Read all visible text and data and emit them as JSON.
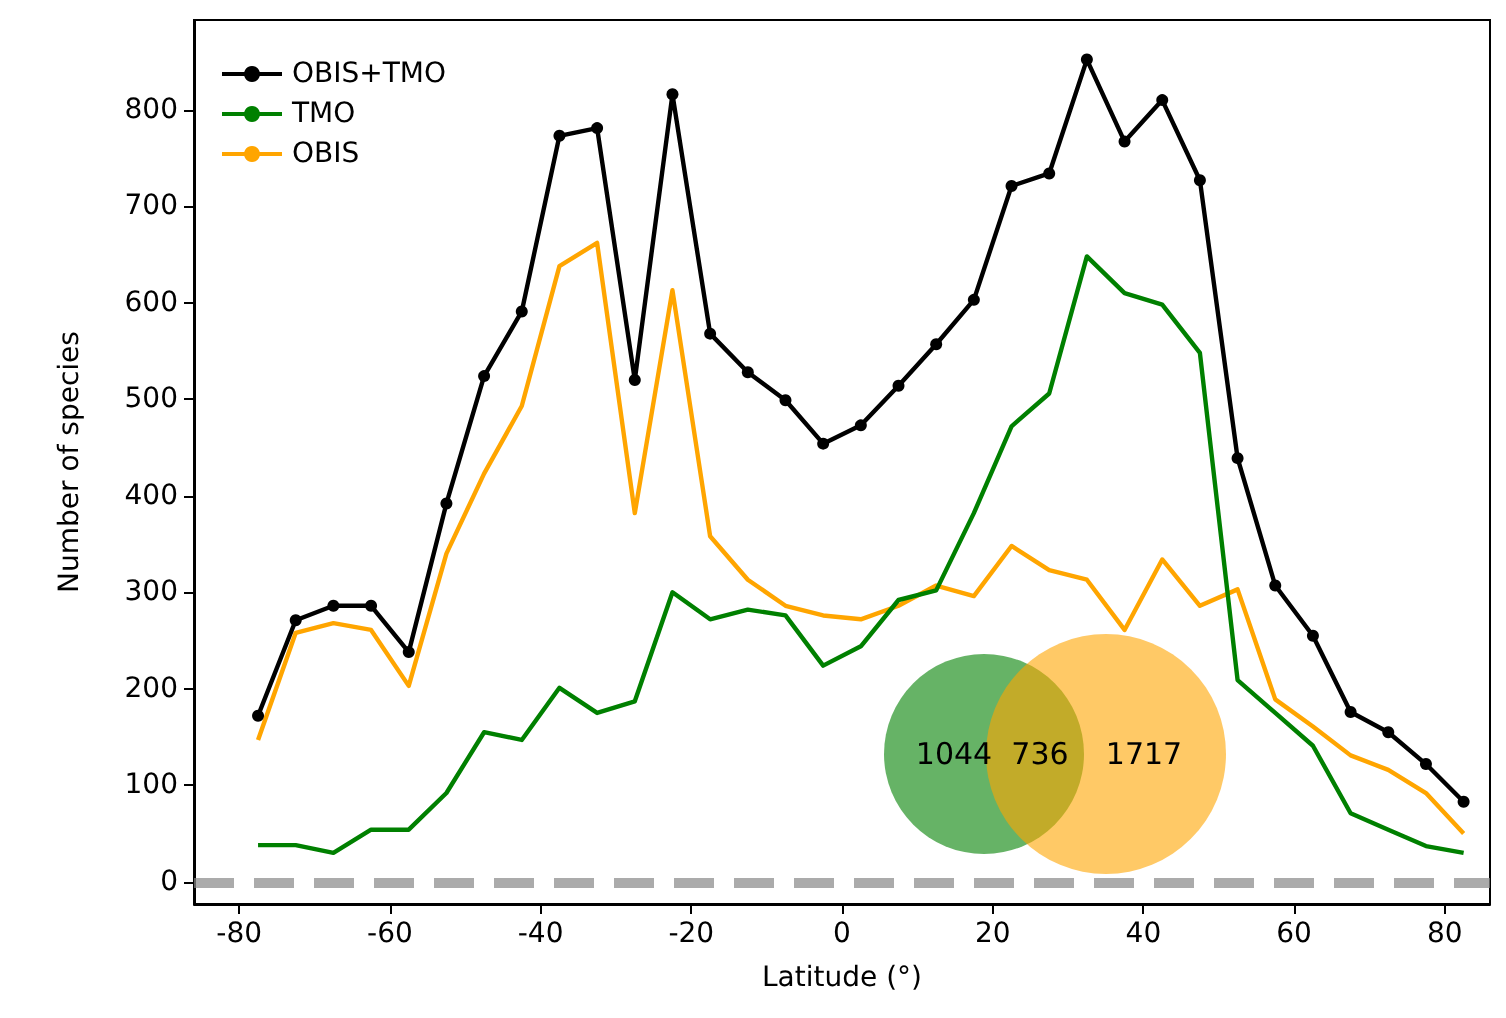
{
  "chart_data": {
    "type": "line",
    "xlabel": "Latitude (°)",
    "ylabel": "Number of species",
    "x": [
      -77.5,
      -72.5,
      -67.5,
      -62.5,
      -57.5,
      -52.5,
      -47.5,
      -42.5,
      -37.5,
      -32.5,
      -27.5,
      -22.5,
      -17.5,
      -12.5,
      -7.5,
      -2.5,
      2.5,
      7.5,
      12.5,
      17.5,
      22.5,
      27.5,
      32.5,
      37.5,
      42.5,
      47.5,
      52.5,
      57.5,
      62.5,
      67.5,
      72.5,
      77.5,
      82.5
    ],
    "series": [
      {
        "name": "OBIS+TMO",
        "color": "#000000",
        "marker": "circle",
        "values": [
          172,
          271,
          286,
          286,
          238,
          392,
          524,
          591,
          773,
          781,
          520,
          816,
          568,
          528,
          499,
          454,
          473,
          514,
          557,
          603,
          721,
          734,
          852,
          767,
          810,
          727,
          439,
          307,
          255,
          176,
          155,
          122,
          83
        ]
      },
      {
        "name": "TMO",
        "color": "#008000",
        "marker": "none",
        "values": [
          38,
          38,
          30,
          54,
          54,
          92,
          155,
          147,
          201,
          175,
          187,
          300,
          272,
          282,
          276,
          224,
          244,
          292,
          302,
          382,
          472,
          506,
          648,
          610,
          598,
          548,
          209,
          175,
          141,
          71,
          54,
          37,
          30
        ]
      },
      {
        "name": "OBIS",
        "color": "#ffa500",
        "marker": "none",
        "values": [
          147,
          258,
          268,
          261,
          203,
          340,
          423,
          493,
          638,
          662,
          382,
          613,
          358,
          313,
          286,
          276,
          272,
          286,
          307,
          296,
          348,
          323,
          313,
          261,
          334,
          286,
          303,
          189,
          161,
          131,
          116,
          92,
          50
        ]
      }
    ],
    "xlim": [
      -86,
      86
    ],
    "xticks": [
      -80,
      -60,
      -40,
      -20,
      0,
      20,
      40,
      60,
      80
    ],
    "ylim": [
      -23,
      893
    ],
    "yticks": [
      0,
      100,
      200,
      300,
      400,
      500,
      600,
      700,
      800
    ],
    "ref_lines": [
      {
        "axis": "y",
        "value": 0,
        "color": "#888888",
        "line_style": "dashed"
      }
    ],
    "annotations": [
      "1044",
      "736",
      "1717"
    ],
    "grid": false,
    "legend": "top left",
    "line_style": "solid"
  }
}
